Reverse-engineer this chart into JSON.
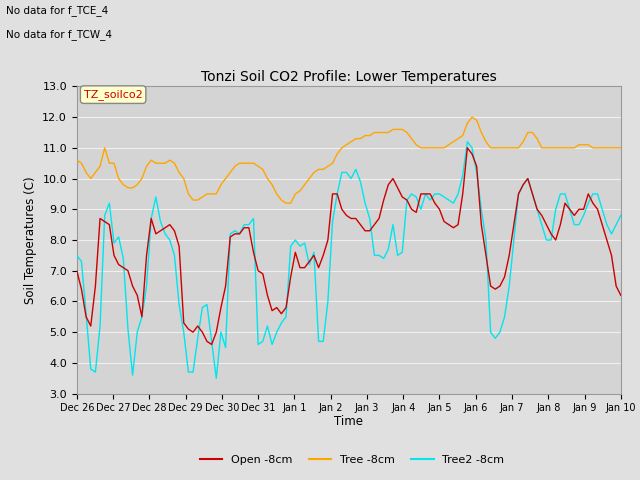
{
  "title": "Tonzi Soil CO2 Profile: Lower Temperatures",
  "ylabel": "Soil Temperatures (C)",
  "xlabel": "Time",
  "annotation_line1": "No data for f_TCE_4",
  "annotation_line2": "No data for f_TCW_4",
  "legend_box_label": "TZ_soilco2",
  "ylim": [
    3.0,
    13.0
  ],
  "yticks": [
    3.0,
    4.0,
    5.0,
    6.0,
    7.0,
    8.0,
    9.0,
    10.0,
    11.0,
    12.0,
    13.0
  ],
  "fig_bg_color": "#e0e0e0",
  "plot_bg_color": "#d4d4d4",
  "grid_color": "#f0f0f0",
  "open_color": "#cc0000",
  "tree_color": "#ffa500",
  "tree2_color": "#00e5ee",
  "open_label": "Open -8cm",
  "tree_label": "Tree -8cm",
  "tree2_label": "Tree2 -8cm",
  "open_data": [
    7.0,
    6.4,
    5.5,
    5.2,
    6.5,
    8.7,
    8.6,
    8.5,
    7.5,
    7.2,
    7.1,
    7.0,
    6.5,
    6.2,
    5.5,
    7.5,
    8.7,
    8.2,
    8.3,
    8.4,
    8.5,
    8.3,
    7.8,
    5.3,
    5.1,
    5.0,
    5.2,
    5.0,
    4.7,
    4.6,
    5.0,
    5.8,
    6.5,
    8.1,
    8.2,
    8.2,
    8.4,
    8.4,
    7.6,
    7.0,
    6.9,
    6.2,
    5.7,
    5.8,
    5.6,
    5.8,
    6.8,
    7.6,
    7.1,
    7.1,
    7.3,
    7.5,
    7.1,
    7.5,
    8.0,
    9.5,
    9.5,
    9.0,
    8.8,
    8.7,
    8.7,
    8.5,
    8.3,
    8.3,
    8.5,
    8.7,
    9.3,
    9.8,
    10.0,
    9.7,
    9.4,
    9.3,
    9.0,
    8.9,
    9.5,
    9.5,
    9.5,
    9.2,
    9.0,
    8.6,
    8.5,
    8.4,
    8.5,
    9.5,
    11.0,
    10.8,
    10.4,
    8.5,
    7.5,
    6.5,
    6.4,
    6.5,
    6.8,
    7.5,
    8.5,
    9.5,
    9.8,
    10.0,
    9.5,
    9.0,
    8.8,
    8.5,
    8.2,
    8.0,
    8.5,
    9.2,
    9.0,
    8.8,
    9.0,
    9.0,
    9.5,
    9.2,
    9.0,
    8.5,
    8.0,
    7.5,
    6.5,
    6.2
  ],
  "tree_data": [
    10.6,
    10.5,
    10.2,
    10.0,
    10.2,
    10.4,
    11.0,
    10.5,
    10.5,
    10.0,
    9.8,
    9.7,
    9.7,
    9.8,
    10.0,
    10.4,
    10.6,
    10.5,
    10.5,
    10.5,
    10.6,
    10.5,
    10.2,
    10.0,
    9.5,
    9.3,
    9.3,
    9.4,
    9.5,
    9.5,
    9.5,
    9.8,
    10.0,
    10.2,
    10.4,
    10.5,
    10.5,
    10.5,
    10.5,
    10.4,
    10.3,
    10.0,
    9.8,
    9.5,
    9.3,
    9.2,
    9.2,
    9.5,
    9.6,
    9.8,
    10.0,
    10.2,
    10.3,
    10.3,
    10.4,
    10.5,
    10.8,
    11.0,
    11.1,
    11.2,
    11.3,
    11.3,
    11.4,
    11.4,
    11.5,
    11.5,
    11.5,
    11.5,
    11.6,
    11.6,
    11.6,
    11.5,
    11.3,
    11.1,
    11.0,
    11.0,
    11.0,
    11.0,
    11.0,
    11.0,
    11.1,
    11.2,
    11.3,
    11.4,
    11.8,
    12.0,
    11.9,
    11.5,
    11.2,
    11.0,
    11.0,
    11.0,
    11.0,
    11.0,
    11.0,
    11.0,
    11.2,
    11.5,
    11.5,
    11.3,
    11.0,
    11.0,
    11.0,
    11.0,
    11.0,
    11.0,
    11.0,
    11.0,
    11.1,
    11.1,
    11.1,
    11.0,
    11.0,
    11.0,
    11.0,
    11.0,
    11.0,
    11.0
  ],
  "tree2_data": [
    7.5,
    7.3,
    5.6,
    3.8,
    3.7,
    5.2,
    8.8,
    9.2,
    7.9,
    8.1,
    7.4,
    5.1,
    3.6,
    5.0,
    5.5,
    6.5,
    8.7,
    9.4,
    8.6,
    8.2,
    8.0,
    7.5,
    5.9,
    5.0,
    3.7,
    3.7,
    4.8,
    5.8,
    5.9,
    4.7,
    3.5,
    5.0,
    4.5,
    8.2,
    8.3,
    8.2,
    8.5,
    8.5,
    8.7,
    4.6,
    4.7,
    5.2,
    4.6,
    5.0,
    5.3,
    5.5,
    7.8,
    8.0,
    7.8,
    7.9,
    7.2,
    7.6,
    4.7,
    4.7,
    6.0,
    8.6,
    9.5,
    10.2,
    10.2,
    10.0,
    10.3,
    9.9,
    9.2,
    8.7,
    7.5,
    7.5,
    7.4,
    7.7,
    8.5,
    7.5,
    7.6,
    9.3,
    9.5,
    9.4,
    9.0,
    9.5,
    9.3,
    9.5,
    9.5,
    9.4,
    9.3,
    9.2,
    9.5,
    10.1,
    11.2,
    11.0,
    10.2,
    9.0,
    8.0,
    5.0,
    4.8,
    5.0,
    5.5,
    6.5,
    8.0,
    9.5,
    9.8,
    10.0,
    9.5,
    9.0,
    8.5,
    8.0,
    8.0,
    9.0,
    9.5,
    9.5,
    9.0,
    8.5,
    8.5,
    8.8,
    9.2,
    9.5,
    9.5,
    9.0,
    8.5,
    8.2,
    8.5,
    8.8
  ],
  "n_points": 118,
  "xtick_labels": [
    "Dec 26",
    "Dec 27",
    "Dec 28",
    "Dec 29",
    "Dec 30",
    "Dec 31",
    "Jan 1",
    "Jan 2",
    "Jan 3",
    "Jan 4",
    "Jan 5",
    "Jan 6",
    "Jan 7",
    "Jan 8",
    "Jan 9",
    "Jan 10"
  ]
}
